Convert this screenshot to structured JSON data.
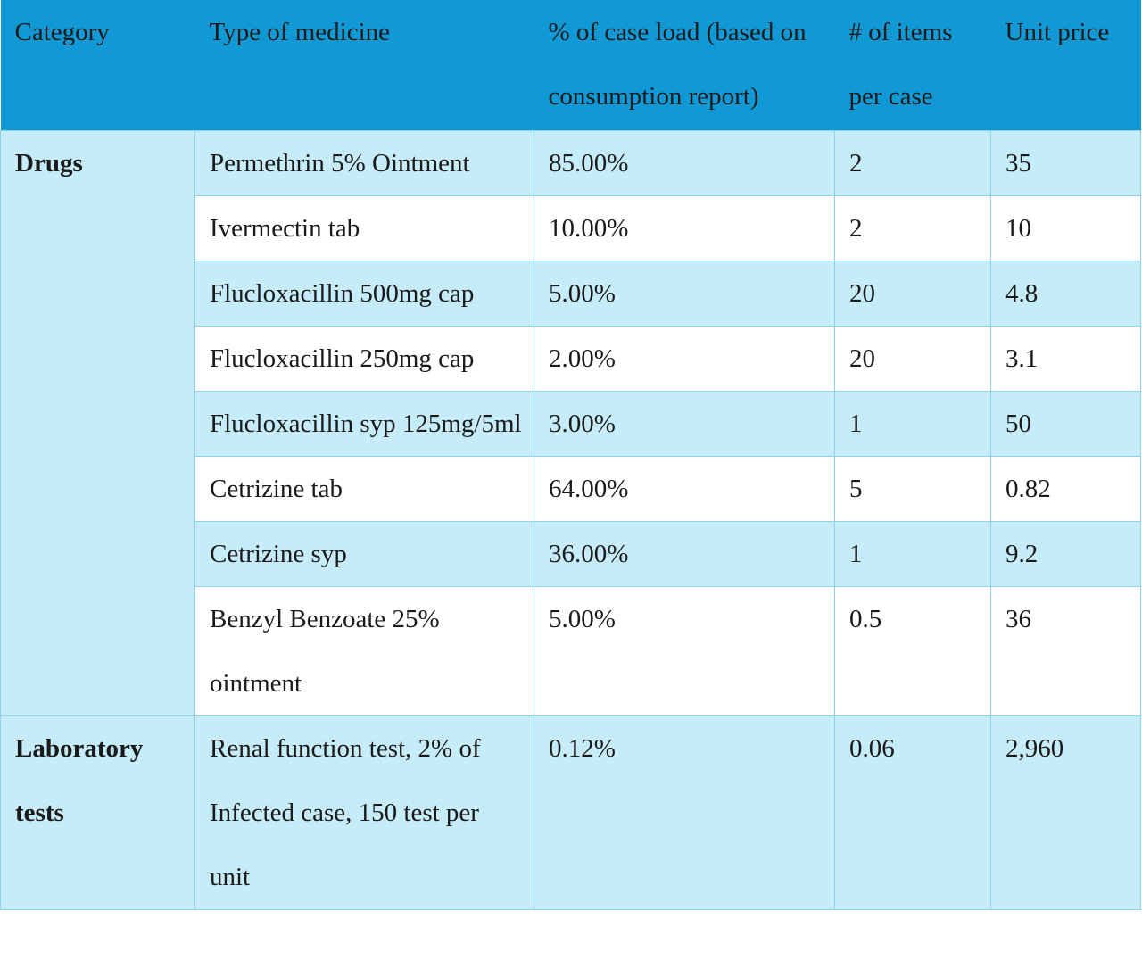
{
  "table": {
    "headers": [
      "Category",
      "Type of medicine",
      "% of case load (based on consumption report)",
      "# of items per case",
      "Unit price"
    ],
    "groups": [
      {
        "category": "Drugs",
        "rows": [
          {
            "medicine": "Permethrin 5% Ointment",
            "case_load": "85.00%",
            "items": "2",
            "price": "35"
          },
          {
            "medicine": "Ivermectin tab",
            "case_load": "10.00%",
            "items": "2",
            "price": "10"
          },
          {
            "medicine": "Flucloxacillin 500mg cap",
            "case_load": "5.00%",
            "items": "20",
            "price": "4.8"
          },
          {
            "medicine": "Flucloxacillin 250mg cap",
            "case_load": "2.00%",
            "items": "20",
            "price": "3.1"
          },
          {
            "medicine": "Flucloxacillin syp 125mg/5ml",
            "case_load": "3.00%",
            "items": "1",
            "price": "50"
          },
          {
            "medicine": "Cetrizine tab",
            "case_load": "64.00%",
            "items": "5",
            "price": "0.82"
          },
          {
            "medicine": "Cetrizine syp",
            "case_load": "36.00%",
            "items": "1",
            "price": "9.2"
          },
          {
            "medicine": "Benzyl Benzoate 25% ointment",
            "case_load": "5.00%",
            "items": "0.5",
            "price": "36"
          }
        ]
      },
      {
        "category": "Laboratory tests",
        "rows": [
          {
            "medicine": "Renal function test, 2% of Infected case, 150 test per unit",
            "case_load": "0.12%",
            "items": "0.06",
            "price": "2,960"
          }
        ]
      }
    ]
  }
}
